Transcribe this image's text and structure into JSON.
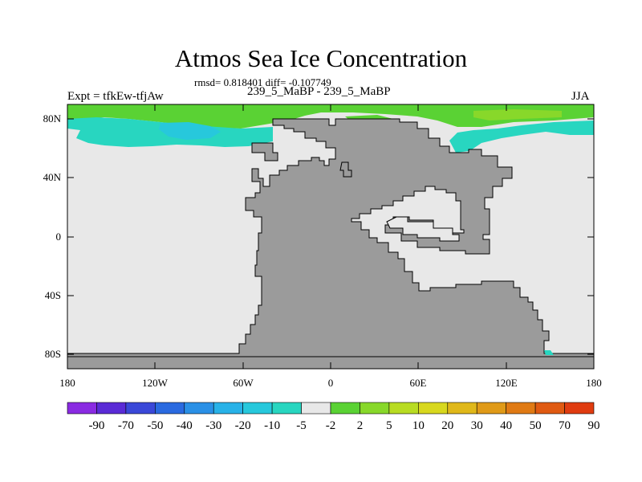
{
  "title": "Atmos Sea Ice Concentration",
  "stats": "rmsd= 0.818401 diff= -0.107749",
  "left_label": "Expt = tfkEw-tfjAw",
  "center_label": "239_5_MaBP - 239_5_MaBP",
  "right_label": "JJA",
  "map": {
    "lat_ticks": [
      "80N",
      "40N",
      "0",
      "40S",
      "80S"
    ],
    "lon_ticks": [
      "180",
      "120W",
      "60W",
      "0",
      "60E",
      "120E",
      "180"
    ],
    "ocean_color": "#e8e8e8",
    "land_color": "#9b9b9b"
  },
  "colorbar": {
    "colors": [
      "#8a2be2",
      "#5a2bd6",
      "#3a48d8",
      "#2a6ae0",
      "#2a90e6",
      "#28b2e8",
      "#27c8dc",
      "#28d6c0",
      "#e8e8e8",
      "#5ad234",
      "#88d82a",
      "#b8dc22",
      "#d8d81e",
      "#e0b81a",
      "#e09a18",
      "#e07a14",
      "#e05a12",
      "#e03c10"
    ],
    "labels": [
      "-90",
      "-70",
      "-50",
      "-40",
      "-30",
      "-20",
      "-10",
      "-5",
      "-2",
      "2",
      "5",
      "10",
      "20",
      "30",
      "40",
      "50",
      "70",
      "90"
    ]
  }
}
